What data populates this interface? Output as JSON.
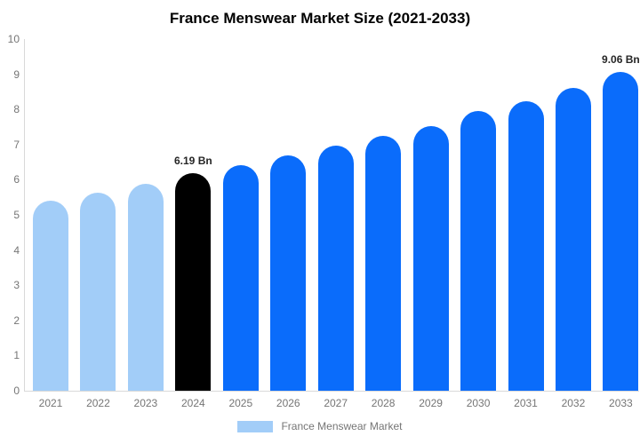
{
  "title": "France Menswear Market Size (2021-2033)",
  "legend": {
    "label": "France Menswear Market",
    "swatch_color": "#a2cdf8"
  },
  "colors": {
    "past": "#a2cdf8",
    "current": "#000000",
    "forecast": "#0a6cfb",
    "axis_line": "#d9d9d9",
    "tick_text": "#757575",
    "annotation_text": "#262626",
    "title_text": "#000000"
  },
  "chart_data": {
    "type": "bar",
    "title": "France Menswear Market Size (2021-2033)",
    "xlabel": "",
    "ylabel": "",
    "unit": "Bn",
    "ylim": [
      0,
      10
    ],
    "yticks": [
      0,
      1,
      2,
      3,
      4,
      5,
      6,
      7,
      8,
      9,
      10
    ],
    "grid": false,
    "legend_position": "bottom",
    "categories": [
      "2021",
      "2022",
      "2023",
      "2024",
      "2025",
      "2026",
      "2027",
      "2028",
      "2029",
      "2030",
      "2031",
      "2032",
      "2033"
    ],
    "values": [
      5.4,
      5.62,
      5.88,
      6.19,
      6.42,
      6.68,
      6.97,
      7.25,
      7.53,
      7.95,
      8.23,
      8.61,
      9.06
    ],
    "point_color_keys": [
      "past",
      "past",
      "past",
      "current",
      "forecast",
      "forecast",
      "forecast",
      "forecast",
      "forecast",
      "forecast",
      "forecast",
      "forecast",
      "forecast"
    ],
    "annotations": [
      {
        "category": "2024",
        "text": "6.19 Bn"
      },
      {
        "category": "2033",
        "text": "9.06 Bn"
      }
    ],
    "series_name": "France Menswear Market"
  }
}
